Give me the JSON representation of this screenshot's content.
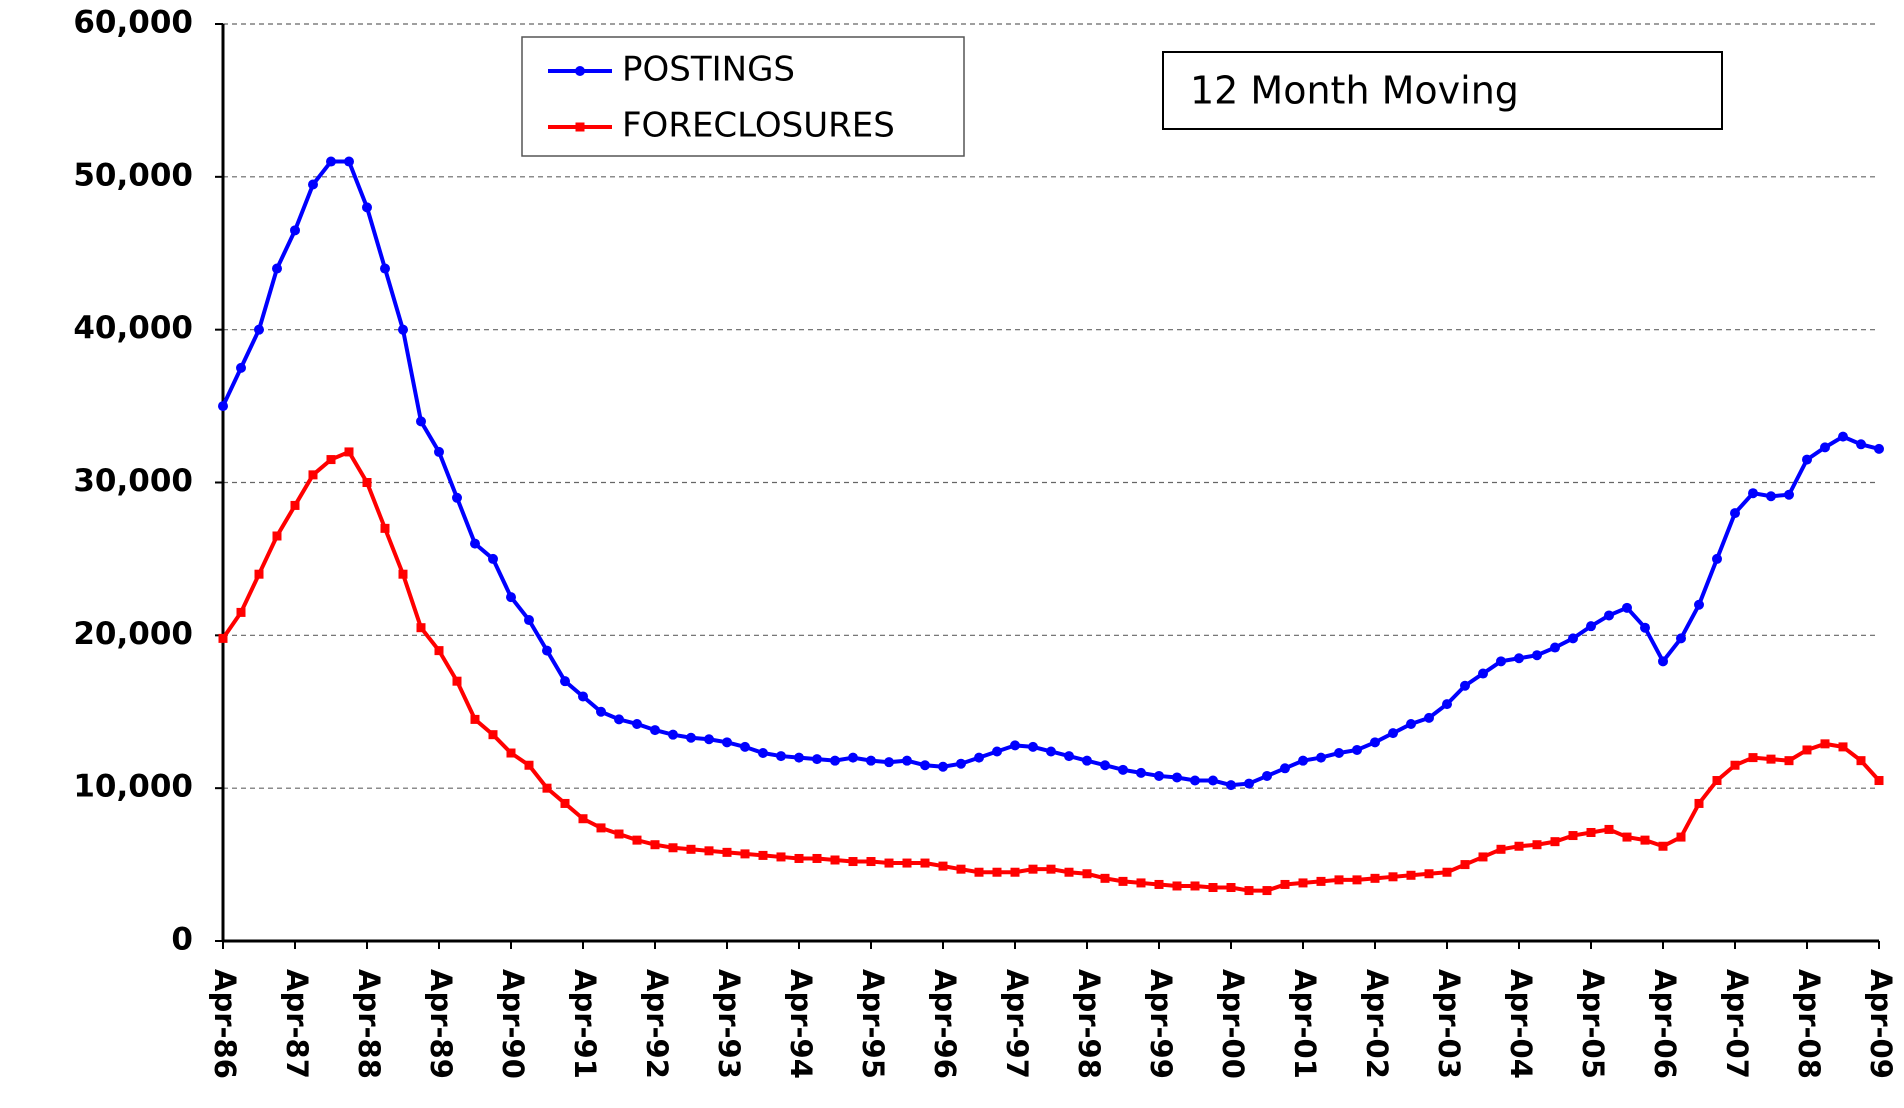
{
  "chart_data": {
    "type": "line",
    "annotation": "12 Month Moving",
    "categories": [
      "Apr-86",
      null,
      null,
      null,
      "Apr-87",
      null,
      null,
      null,
      "Apr-88",
      null,
      null,
      null,
      "Apr-89",
      null,
      null,
      null,
      "Apr-90",
      null,
      null,
      null,
      "Apr-91",
      null,
      null,
      null,
      "Apr-92",
      null,
      null,
      null,
      "Apr-93",
      null,
      null,
      null,
      "Apr-94",
      null,
      null,
      null,
      "Apr-95",
      null,
      null,
      null,
      "Apr-96",
      null,
      null,
      null,
      "Apr-97",
      null,
      null,
      null,
      "Apr-98",
      null,
      null,
      null,
      "Apr-99",
      null,
      null,
      null,
      "Apr-00",
      null,
      null,
      null,
      "Apr-01",
      null,
      null,
      null,
      "Apr-02",
      null,
      null,
      null,
      "Apr-03",
      null,
      null,
      null,
      "Apr-04",
      null,
      null,
      null,
      "Apr-05",
      null,
      null,
      null,
      "Apr-06",
      null,
      null,
      null,
      "Apr-07",
      null,
      null,
      null,
      "Apr-08",
      null,
      null,
      null,
      "Apr-09"
    ],
    "series": [
      {
        "name": "POSTINGS",
        "color": "#0000ff",
        "marker": "circle",
        "values": [
          35000,
          37500,
          40000,
          44000,
          46500,
          49500,
          51000,
          51000,
          48000,
          44000,
          40000,
          34000,
          32000,
          29000,
          26000,
          25000,
          22500,
          21000,
          19000,
          17000,
          16000,
          15000,
          14500,
          14200,
          13800,
          13500,
          13300,
          13200,
          13000,
          12700,
          12300,
          12100,
          12000,
          11900,
          11800,
          12000,
          11800,
          11700,
          11800,
          11500,
          11400,
          11600,
          12000,
          12400,
          12800,
          12700,
          12400,
          12100,
          11800,
          11500,
          11200,
          11000,
          10800,
          10700,
          10500,
          10500,
          10200,
          10300,
          10800,
          11300,
          11800,
          12000,
          12300,
          12500,
          13000,
          13600,
          14200,
          14600,
          15500,
          16700,
          17500,
          18300,
          18500,
          18700,
          19200,
          19800,
          20600,
          21300,
          21800,
          20500,
          18300,
          19800,
          22000,
          25000,
          28000,
          29300,
          29100,
          29200,
          31500,
          32300,
          33000,
          32500,
          32200
        ]
      },
      {
        "name": "FORECLOSURES",
        "color": "#ff0000",
        "marker": "square",
        "values": [
          19800,
          21500,
          24000,
          26500,
          28500,
          30500,
          31500,
          32000,
          30000,
          27000,
          24000,
          20500,
          19000,
          17000,
          14500,
          13500,
          12300,
          11500,
          10000,
          9000,
          8000,
          7400,
          7000,
          6600,
          6300,
          6100,
          6000,
          5900,
          5800,
          5700,
          5600,
          5500,
          5400,
          5400,
          5300,
          5200,
          5200,
          5100,
          5100,
          5100,
          4900,
          4700,
          4500,
          4500,
          4500,
          4700,
          4700,
          4500,
          4400,
          4100,
          3900,
          3800,
          3700,
          3600,
          3600,
          3500,
          3500,
          3300,
          3300,
          3700,
          3800,
          3900,
          4000,
          4000,
          4100,
          4200,
          4300,
          4400,
          4500,
          5000,
          5500,
          6000,
          6200,
          6300,
          6500,
          6900,
          7100,
          7300,
          6800,
          6600,
          6200,
          6800,
          9000,
          10500,
          11500,
          12000,
          11900,
          11800,
          12500,
          12900,
          12700,
          11800,
          10500
        ]
      }
    ],
    "ylim": [
      0,
      60000
    ],
    "yticks": [
      0,
      {
        "value": 10000,
        "label": "10,000"
      },
      {
        "value": 20000,
        "label": "20,000"
      },
      {
        "value": 30000,
        "label": "30,000"
      },
      {
        "value": 40000,
        "label": "40,000"
      },
      {
        "value": 50000,
        "label": "50,000"
      },
      {
        "value": 60000,
        "label": "60,000"
      }
    ],
    "grid": true,
    "legend": "upper-left"
  }
}
